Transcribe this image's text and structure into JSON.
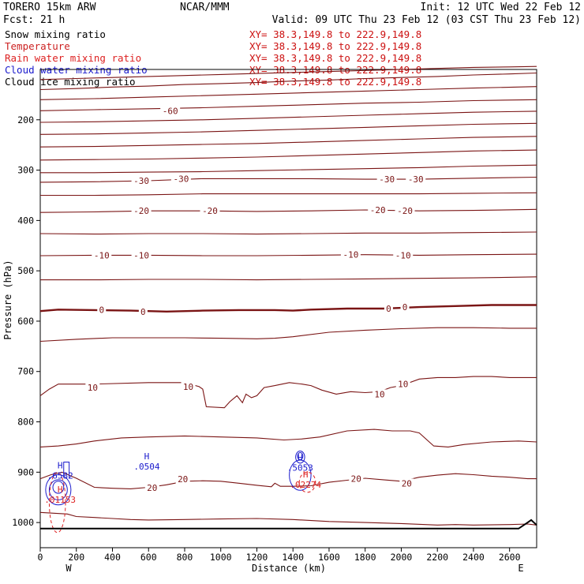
{
  "header": {
    "model": "TORERO  15km ARW",
    "org": "NCAR/MMM",
    "init": "Init: 12 UTC Wed 22 Feb 12",
    "fcst": "Fcst:    21 h",
    "valid": "Valid: 09 UTC Thu 23 Feb 12 (03 CST Thu 23 Feb 12)"
  },
  "fields": [
    {
      "name": "Snow mixing ratio",
      "color": "#000000",
      "xy": "XY=  38.3,149.8 to 222.9,149.8"
    },
    {
      "name": "Temperature",
      "color": "#cc2222",
      "xy": "XY=  38.3,149.8 to 222.9,149.8"
    },
    {
      "name": "Rain water mixing ratio",
      "color": "#dd2222",
      "xy": "XY=  38.3,149.8 to 222.9,149.8"
    },
    {
      "name": "Cloud water mixing ratio",
      "color": "#1a1acc",
      "xy": "XY=  38.3,149.8 to 222.9,149.8"
    },
    {
      "name": "Cloud ice mixing ratio",
      "color": "#000000",
      "xy": "XY=  38.3,149.8 to 222.9,149.8"
    }
  ],
  "chart_data": {
    "type": "line",
    "title": "",
    "xlabel": "Distance (km)",
    "ylabel": "Pressure (hPa)",
    "xlim": [
      0,
      2750
    ],
    "ylim": [
      1050,
      100
    ],
    "x_ticks": [
      0,
      200,
      400,
      600,
      800,
      1000,
      1200,
      1400,
      1600,
      1800,
      2000,
      2200,
      2400,
      2600
    ],
    "y_ticks": [
      200,
      300,
      400,
      500,
      600,
      700,
      800,
      900,
      1000
    ],
    "x_end_labels": {
      "left": "W",
      "right": "E"
    },
    "colors": {
      "isotherm": "#7a1414",
      "zero_isotherm": "#7a1414",
      "cloud_water": "#1a1acc",
      "rain": "#dd2222",
      "terrain": "#000000"
    },
    "isotherm_labels": [
      {
        "text": "-60",
        "x": 720,
        "p": 182
      },
      {
        "text": "-30",
        "x": 560,
        "p": 321
      },
      {
        "text": "-30",
        "x": 780,
        "p": 317
      },
      {
        "text": "-30",
        "x": 1920,
        "p": 318
      },
      {
        "text": "-30",
        "x": 2080,
        "p": 318
      },
      {
        "text": "-20",
        "x": 560,
        "p": 381
      },
      {
        "text": "-20",
        "x": 940,
        "p": 381
      },
      {
        "text": "-20",
        "x": 1870,
        "p": 379
      },
      {
        "text": "-20",
        "x": 2020,
        "p": 381
      },
      {
        "text": "-10",
        "x": 340,
        "p": 469
      },
      {
        "text": "-10",
        "x": 560,
        "p": 469
      },
      {
        "text": "-10",
        "x": 1720,
        "p": 468
      },
      {
        "text": "-10",
        "x": 2010,
        "p": 469
      },
      {
        "text": "0",
        "x": 340,
        "p": 577
      },
      {
        "text": "0",
        "x": 570,
        "p": 581
      },
      {
        "text": "0",
        "x": 1930,
        "p": 575
      },
      {
        "text": "0",
        "x": 2020,
        "p": 572
      },
      {
        "text": "10",
        "x": 290,
        "p": 732
      },
      {
        "text": "10",
        "x": 820,
        "p": 730
      },
      {
        "text": "10",
        "x": 1880,
        "p": 745
      },
      {
        "text": "10",
        "x": 2010,
        "p": 725
      },
      {
        "text": "20",
        "x": 620,
        "p": 931
      },
      {
        "text": "20",
        "x": 790,
        "p": 914
      },
      {
        "text": "20",
        "x": 1750,
        "p": 913
      },
      {
        "text": "20",
        "x": 2030,
        "p": 922
      }
    ],
    "max_labels": [
      {
        "mark": "H",
        "value": ".6582",
        "color": "#1a1acc",
        "x": 110,
        "p": 902
      },
      {
        "mark": "H",
        "value": ".0504",
        "color": "#1a1acc",
        "x": 590,
        "p": 884
      },
      {
        "mark": "H",
        "value": ".5053",
        "color": "#1a1acc",
        "x": 1440,
        "p": 886
      },
      {
        "mark": "H",
        "value": ".01153",
        "color": "#dd2222",
        "x": 110,
        "p": 950
      },
      {
        "mark": "H",
        "value": ".02274",
        "color": "#dd2222",
        "x": 1470,
        "p": 920
      }
    ]
  }
}
